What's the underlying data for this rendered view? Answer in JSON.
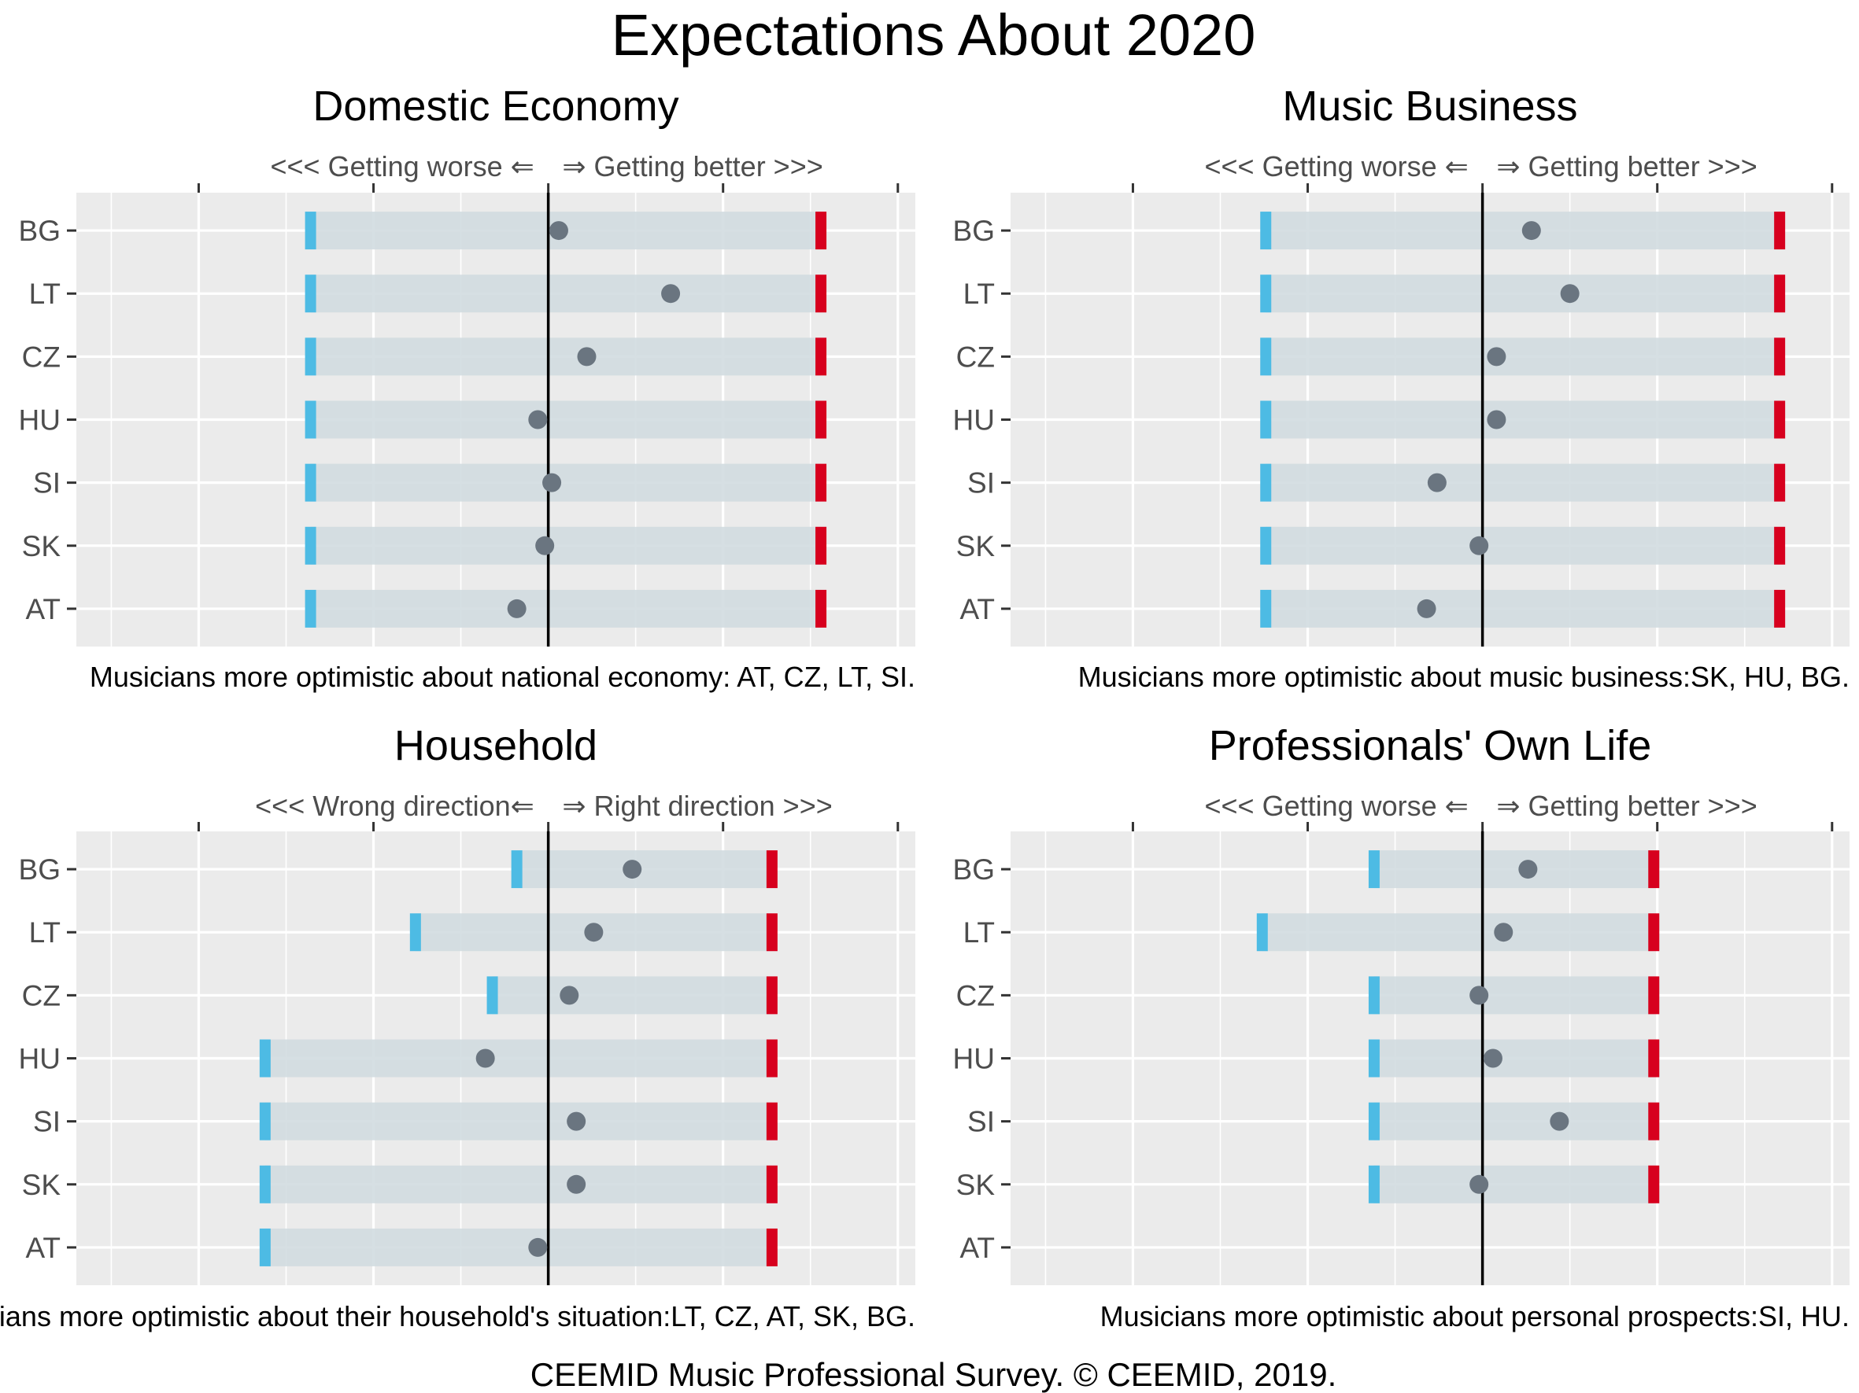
{
  "title": "Expectations About 2020",
  "caption": "CEEMID Music Professional Survey. © CEEMID, 2019.",
  "colors": {
    "panel_background": "#ebebeb",
    "grid": "#ffffff",
    "band": "#d1dbe0",
    "low_marker": "#4dbbe4",
    "high_marker": "#d7001e",
    "point": "#6a7580",
    "zero_line": "#000000",
    "tick_text": "#4d4d4d"
  },
  "chart_data": [
    {
      "type": "dot-range",
      "title": "Domestic Economy",
      "top_axis": {
        "left_label": "<<< Getting worse ⇐",
        "right_label": "⇒ Getting better >>>"
      },
      "xlim": [
        -1.35,
        1.05
      ],
      "categories": [
        "BG",
        "LT",
        "CZ",
        "HU",
        "SI",
        "SK",
        "AT"
      ],
      "low": [
        -0.68,
        -0.68,
        -0.68,
        -0.68,
        -0.68,
        -0.68,
        -0.68
      ],
      "high": [
        0.78,
        0.78,
        0.78,
        0.78,
        0.78,
        0.78,
        0.78
      ],
      "values": [
        0.03,
        0.35,
        0.11,
        -0.03,
        0.01,
        -0.01,
        -0.09
      ],
      "note": "Musicians more optimistic about national economy: AT, CZ, LT, SI."
    },
    {
      "type": "dot-range",
      "title": "Music Business",
      "top_axis": {
        "left_label": "<<< Getting worse ⇐",
        "right_label": "⇒ Getting better >>>"
      },
      "xlim": [
        -1.35,
        1.05
      ],
      "categories": [
        "BG",
        "LT",
        "CZ",
        "HU",
        "SI",
        "SK",
        "AT"
      ],
      "low": [
        -0.62,
        -0.62,
        -0.62,
        -0.62,
        -0.62,
        -0.62,
        -0.62
      ],
      "high": [
        0.85,
        0.85,
        0.85,
        0.85,
        0.85,
        0.85,
        0.85
      ],
      "values": [
        0.14,
        0.25,
        0.04,
        0.04,
        -0.13,
        -0.01,
        -0.16
      ],
      "note": "Musicians more optimistic about music business:SK, HU, BG."
    },
    {
      "type": "dot-range",
      "title": "Household",
      "top_axis": {
        "left_label": "<<< Wrong direction⇐",
        "right_label": "⇒ Right direction >>>"
      },
      "xlim": [
        -1.35,
        1.05
      ],
      "categories": [
        "BG",
        "LT",
        "CZ",
        "HU",
        "SI",
        "SK",
        "AT"
      ],
      "low": [
        -0.09,
        -0.38,
        -0.16,
        -0.81,
        -0.81,
        -0.81,
        -0.81
      ],
      "high": [
        0.64,
        0.64,
        0.64,
        0.64,
        0.64,
        0.64,
        0.64
      ],
      "values": [
        0.24,
        0.13,
        0.06,
        -0.18,
        0.08,
        0.08,
        -0.03
      ],
      "note": "Musicians more optimistic about their household's situation:LT, CZ, AT, SK, BG."
    },
    {
      "type": "dot-range",
      "title": "Professionals' Own Life",
      "top_axis": {
        "left_label": "<<< Getting worse ⇐",
        "right_label": "⇒ Getting better >>>"
      },
      "xlim": [
        -1.35,
        1.05
      ],
      "categories": [
        "BG",
        "LT",
        "CZ",
        "HU",
        "SI",
        "SK",
        "AT"
      ],
      "low": [
        -0.31,
        -0.63,
        -0.31,
        -0.31,
        -0.31,
        -0.31,
        null
      ],
      "high": [
        0.49,
        0.49,
        0.49,
        0.49,
        0.49,
        0.49,
        null
      ],
      "values": [
        0.13,
        0.06,
        -0.01,
        0.03,
        0.22,
        -0.01,
        null
      ],
      "note": "Musicians more optimistic about personal prospects:SI, HU."
    }
  ]
}
